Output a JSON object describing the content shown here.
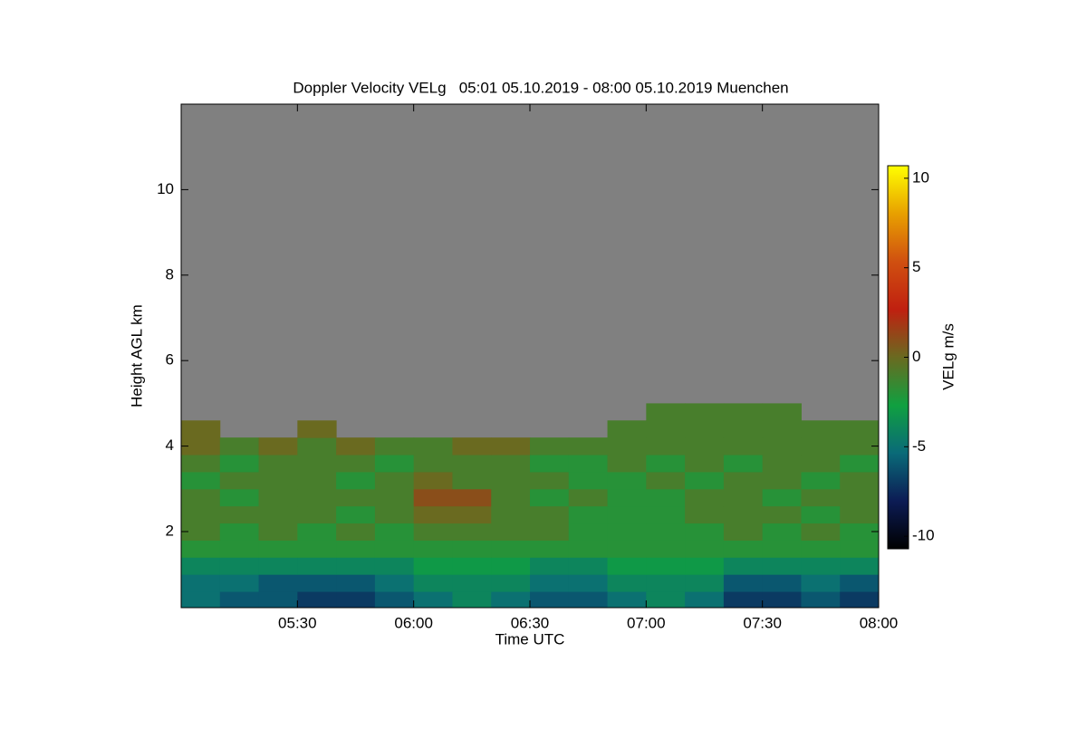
{
  "chart_data": {
    "type": "heatmap",
    "title": "Doppler Velocity VELg   05:01 05.10.2019 - 08:00 05.10.2019 Muenchen",
    "x_label": "Time UTC",
    "y_label": "Height AGL km",
    "colorbar_label": "VELg m/s",
    "background": "#808080",
    "xlim": [
      300,
      480
    ],
    "xticks": [
      {
        "value": 330,
        "label": "05:30"
      },
      {
        "value": 360,
        "label": "06:00"
      },
      {
        "value": 390,
        "label": "06:30"
      },
      {
        "value": 420,
        "label": "07:00"
      },
      {
        "value": 450,
        "label": "07:30"
      },
      {
        "value": 480,
        "label": "08:00"
      }
    ],
    "ylim": [
      0.22,
      12
    ],
    "yticks": [
      2,
      4,
      6,
      8,
      10
    ],
    "zlim": [
      -10.7,
      10.7
    ],
    "zticks": [
      10,
      5,
      0,
      -5,
      -10
    ],
    "colormap": [
      "#000000",
      "#0c1c55",
      "#0a6a78",
      "#10a040",
      "#6a6a20",
      "#c02010",
      "#d05010",
      "#e8a000",
      "#ffff00"
    ],
    "xbins": [
      300,
      310,
      320,
      330,
      340,
      350,
      360,
      370,
      380,
      390,
      400,
      410,
      420,
      430,
      440,
      450,
      460,
      470,
      480
    ],
    "ybins": [
      0.2,
      0.6,
      1.0,
      1.4,
      1.8,
      2.2,
      2.6,
      3.0,
      3.4,
      3.8,
      4.2,
      4.6,
      5.0
    ],
    "z": [
      [
        -5,
        -6,
        -6,
        -7,
        -7,
        -6,
        -5,
        -4,
        -5,
        -6,
        -6,
        -5,
        -4,
        -5,
        -7,
        -7,
        -6,
        -7
      ],
      [
        -5,
        -5,
        -6,
        -6,
        -6,
        -5,
        -4,
        -4,
        -4,
        -5,
        -5,
        -4,
        -4,
        -4,
        -6,
        -6,
        -5,
        -6
      ],
      [
        -4,
        -4,
        -4,
        -4,
        -4,
        -4,
        -3,
        -3,
        -3,
        -4,
        -4,
        -3,
        -3,
        -3,
        -4,
        -4,
        -4,
        -4
      ],
      [
        -2,
        -2,
        -2,
        -2,
        -2,
        -2,
        -2,
        -2,
        -2,
        -2,
        -2,
        -2,
        -2,
        -2,
        -2,
        -2,
        -2,
        -2
      ],
      [
        -1,
        -2,
        -1,
        -2,
        -1,
        -2,
        -1,
        -1,
        -1,
        -1,
        -2,
        -2,
        -2,
        -2,
        -1,
        -2,
        -1,
        -2
      ],
      [
        -1,
        -1,
        -1,
        -1,
        -2,
        -1,
        0,
        0,
        -1,
        -1,
        -2,
        -2,
        -2,
        -1,
        -1,
        -1,
        -2,
        -1
      ],
      [
        -1,
        -2,
        -1,
        -1,
        -1,
        -1,
        1,
        1,
        -1,
        -2,
        -1,
        -2,
        -2,
        -1,
        -1,
        -2,
        -1,
        -1
      ],
      [
        -2,
        -1,
        -1,
        -1,
        -2,
        -1,
        0,
        -1,
        -1,
        -1,
        -2,
        -2,
        -1,
        -2,
        -1,
        -1,
        -2,
        -1
      ],
      [
        -1,
        -2,
        -1,
        -1,
        -1,
        -2,
        -1,
        -1,
        -1,
        -2,
        -2,
        -1,
        -2,
        -1,
        -2,
        -1,
        -1,
        -2
      ],
      [
        0,
        -1,
        0,
        -1,
        0,
        -1,
        -1,
        0,
        0,
        -1,
        -1,
        -1,
        -1,
        -1,
        -1,
        -1,
        -1,
        -1
      ],
      [
        0,
        null,
        null,
        0,
        null,
        null,
        null,
        null,
        null,
        null,
        null,
        -1,
        -1,
        -1,
        -1,
        -1,
        -1,
        -1
      ],
      [
        null,
        null,
        null,
        null,
        null,
        null,
        null,
        null,
        null,
        null,
        null,
        null,
        -1,
        -1,
        -1,
        -1,
        null,
        null
      ]
    ]
  }
}
